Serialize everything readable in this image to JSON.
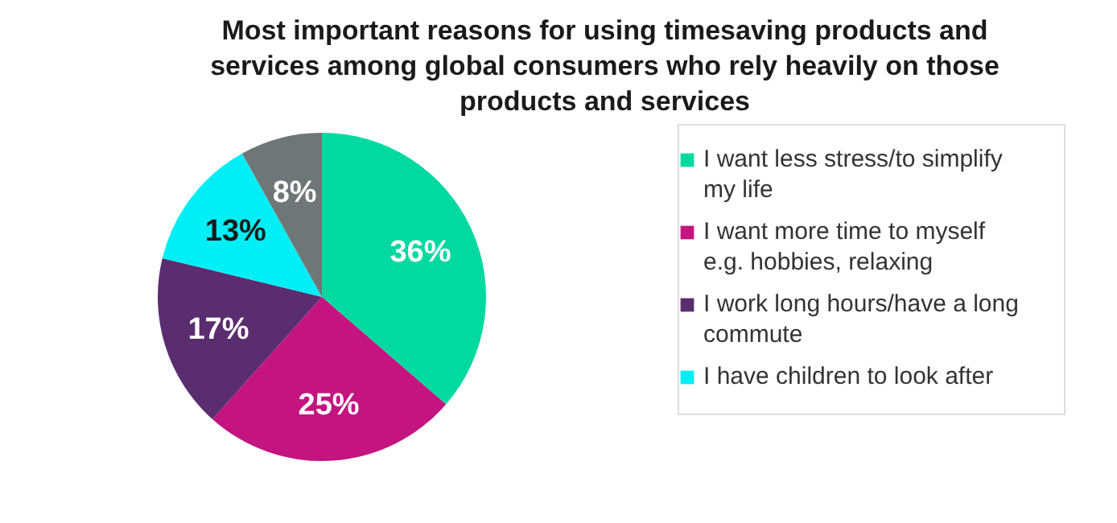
{
  "chart_data": {
    "type": "pie",
    "title": "Most important reasons for using timesaving products and services among global consumers who rely heavily on those products and services",
    "categories": [
      "I want less stress/to simplify my life",
      "I want more time to myself e.g. hobbies, relaxing",
      "I work long hours/have a long commute",
      "I have children to look after",
      null
    ],
    "values": [
      36,
      25,
      17,
      13,
      8
    ],
    "value_labels": [
      "36%",
      "25%",
      "17%",
      "13%",
      "8%"
    ],
    "colors": [
      "#00d9a0",
      "#c4147f",
      "#5a2d6e",
      "#00eef5",
      "#6f7677"
    ],
    "legend": "right"
  }
}
